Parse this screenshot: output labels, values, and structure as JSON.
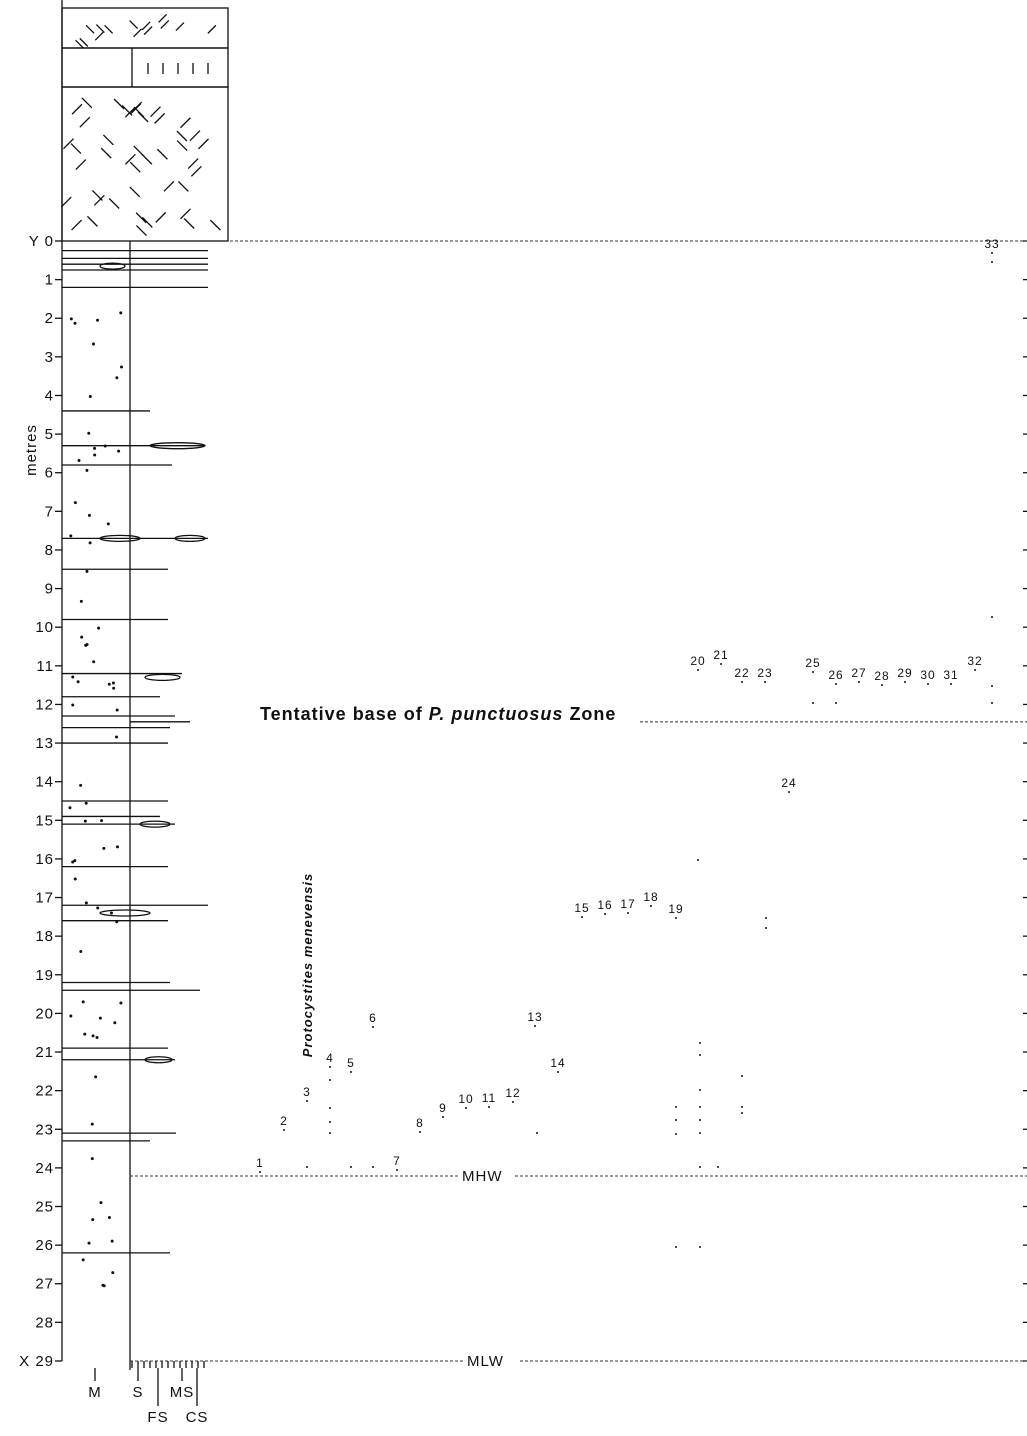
{
  "axis": {
    "label": "metres",
    "ticks": [
      "Y 0",
      "1",
      "2",
      "3",
      "4",
      "5",
      "6",
      "7",
      "8",
      "9",
      "10",
      "11",
      "12",
      "13",
      "14",
      "15",
      "16",
      "17",
      "18",
      "19",
      "20",
      "21",
      "22",
      "23",
      "24",
      "25",
      "26",
      "27",
      "28",
      "X 29"
    ]
  },
  "zone_label": {
    "lead": "Tentative base of",
    "taxon": "P. punctuosus",
    "tail": "Zone"
  },
  "species_label": "Protocystites menevensis",
  "levels": {
    "high": "MHW",
    "low": "MLW"
  },
  "grain_sizes": [
    "M",
    "S",
    "FS",
    "MS",
    "CS"
  ],
  "samples": [
    "1",
    "2",
    "3",
    "4",
    "5",
    "6",
    "7",
    "8",
    "9",
    "10",
    "11",
    "12",
    "13",
    "14",
    "15",
    "16",
    "17",
    "18",
    "19",
    "20",
    "21",
    "22",
    "23",
    "24",
    "25",
    "26",
    "27",
    "28",
    "29",
    "30",
    "31",
    "32",
    "33"
  ]
}
